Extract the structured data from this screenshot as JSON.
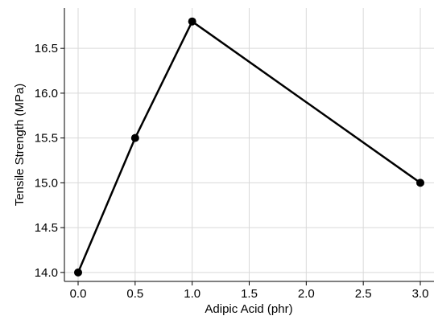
{
  "chart_data": {
    "type": "line",
    "title": "",
    "xlabel": "Adipic Acid (phr)",
    "ylabel": "Tensile Strength (MPa)",
    "xlim": [
      -0.12,
      3.12
    ],
    "ylim": [
      13.9,
      16.95
    ],
    "x_ticks": [
      "0.0",
      "0.5",
      "1.0",
      "1.5",
      "2.0",
      "2.5",
      "3.0"
    ],
    "y_ticks": [
      "14.0",
      "14.5",
      "15.0",
      "15.5",
      "16.0",
      "16.5"
    ],
    "grid": true,
    "legend": "none",
    "line_color": "#000000",
    "series": [
      {
        "x": [
          0.0,
          0.5,
          1.0,
          3.0
        ],
        "y": [
          14.0,
          15.5,
          16.8,
          15.0
        ]
      }
    ]
  }
}
